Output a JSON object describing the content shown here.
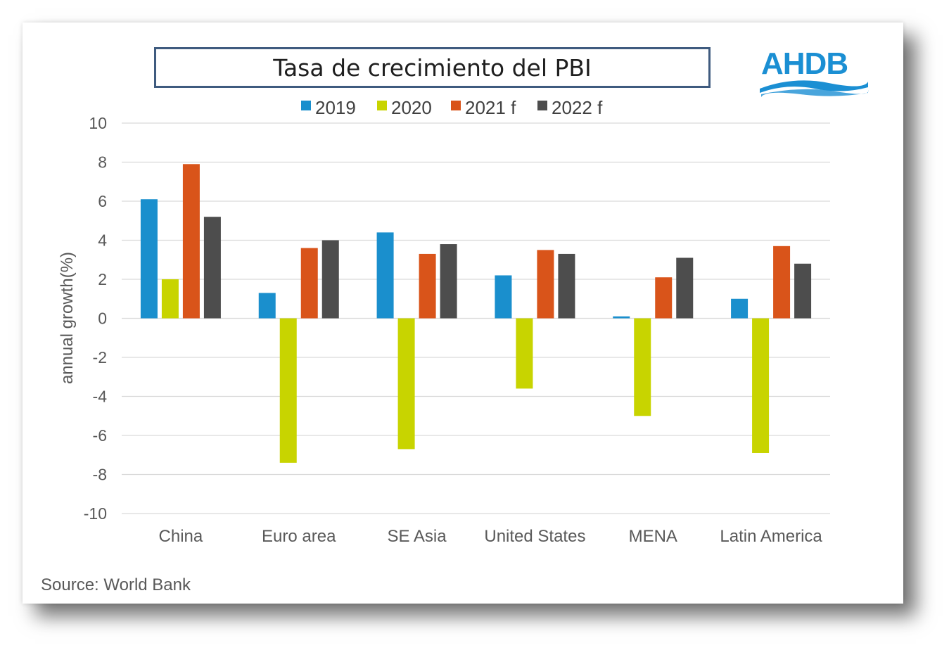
{
  "header": {
    "title": "Tasa de crecimiento del PBI"
  },
  "logo": {
    "text": "AHDB",
    "color": "#1b8fd3"
  },
  "source": "Source: World Bank",
  "chart_data": {
    "type": "bar",
    "title": "Tasa de crecimiento del PBI",
    "xlabel": "",
    "ylabel": "annual growth(%)",
    "ylim": [
      -10,
      10
    ],
    "yticks": [
      10,
      8,
      6,
      4,
      2,
      0,
      -2,
      -4,
      -6,
      -8,
      -10
    ],
    "grid": true,
    "legend_position": "top",
    "categories": [
      "China",
      "Euro area",
      "SE Asia",
      "United States",
      "MENA",
      "Latin America"
    ],
    "series": [
      {
        "name": "2019",
        "color": "#1a8fcd",
        "values": [
          6.1,
          1.3,
          4.4,
          2.2,
          0.1,
          1.0
        ]
      },
      {
        "name": "2020",
        "color": "#c8d400",
        "values": [
          2.0,
          -7.4,
          -6.7,
          -3.6,
          -5.0,
          -6.9
        ]
      },
      {
        "name": "2021 f",
        "color": "#d9541a",
        "values": [
          7.9,
          3.6,
          3.3,
          3.5,
          2.1,
          3.7
        ]
      },
      {
        "name": "2022 f",
        "color": "#4d4d4d",
        "values": [
          5.2,
          4.0,
          3.8,
          3.3,
          3.1,
          2.8
        ]
      }
    ]
  }
}
